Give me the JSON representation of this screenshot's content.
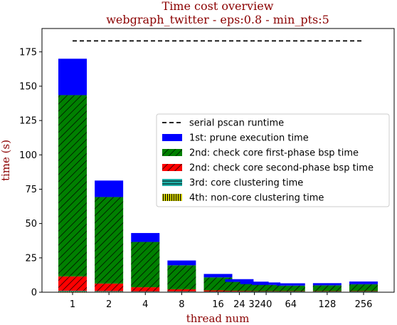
{
  "chart_data": {
    "type": "bar",
    "stacked": true,
    "title": "Time cost overview",
    "subtitle": "webgraph_twitter - eps:0.8 - min_pts:5",
    "xlabel": "thread num",
    "ylabel": "time (s)",
    "ylim": [
      0,
      192
    ],
    "yticks": [
      "0",
      "25",
      "50",
      "75",
      "100",
      "125",
      "150",
      "175"
    ],
    "categories": [
      "1",
      "2",
      "4",
      "8",
      "16",
      "24",
      "32",
      "40",
      "64",
      "128",
      "256"
    ],
    "x_scale": "log2",
    "grid": false,
    "legend_position": "center-right",
    "reference_line": {
      "name": "serial pscan runtime",
      "value": 183,
      "style": "dashed",
      "color": "#000000"
    },
    "series": [
      {
        "name": "4th: non-core clustering time",
        "color": "#cccc00",
        "hatch": "vertical",
        "values": [
          0.5,
          0.4,
          0.3,
          0.3,
          0.2,
          0.2,
          0.2,
          0.2,
          0.2,
          0.2,
          0.2
        ]
      },
      {
        "name": "3rd: core clustering time",
        "color": "#20b2aa",
        "hatch": "horizontal",
        "values": [
          0.5,
          0.4,
          0.3,
          0.3,
          0.3,
          0.3,
          0.3,
          0.3,
          0.3,
          0.3,
          0.3
        ]
      },
      {
        "name": "2nd: check core second-phase bsp time",
        "color": "#ff0000",
        "hatch": "diagonal",
        "values": [
          10.5,
          5.5,
          3.0,
          1.5,
          0.8,
          0.5,
          0.4,
          0.3,
          0.3,
          0.3,
          0.3
        ]
      },
      {
        "name": "2nd: check core first-phase bsp time",
        "color": "#008000",
        "hatch": "diagonal",
        "values": [
          132,
          63,
          33,
          17.5,
          9.5,
          6.5,
          5.0,
          4.5,
          4.0,
          4.2,
          5.0
        ]
      },
      {
        "name": "1st: prune execution time",
        "color": "#0000ff",
        "hatch": "none",
        "values": [
          26.5,
          12.0,
          6.5,
          3.5,
          2.5,
          2.0,
          1.8,
          1.8,
          1.7,
          1.6,
          2.0
        ]
      }
    ],
    "legend_order": [
      "serial pscan runtime",
      "1st: prune execution time",
      "2nd: check core first-phase bsp time",
      "2nd: check core second-phase bsp time",
      "3rd: core clustering time",
      "4th: non-core clustering time"
    ]
  }
}
